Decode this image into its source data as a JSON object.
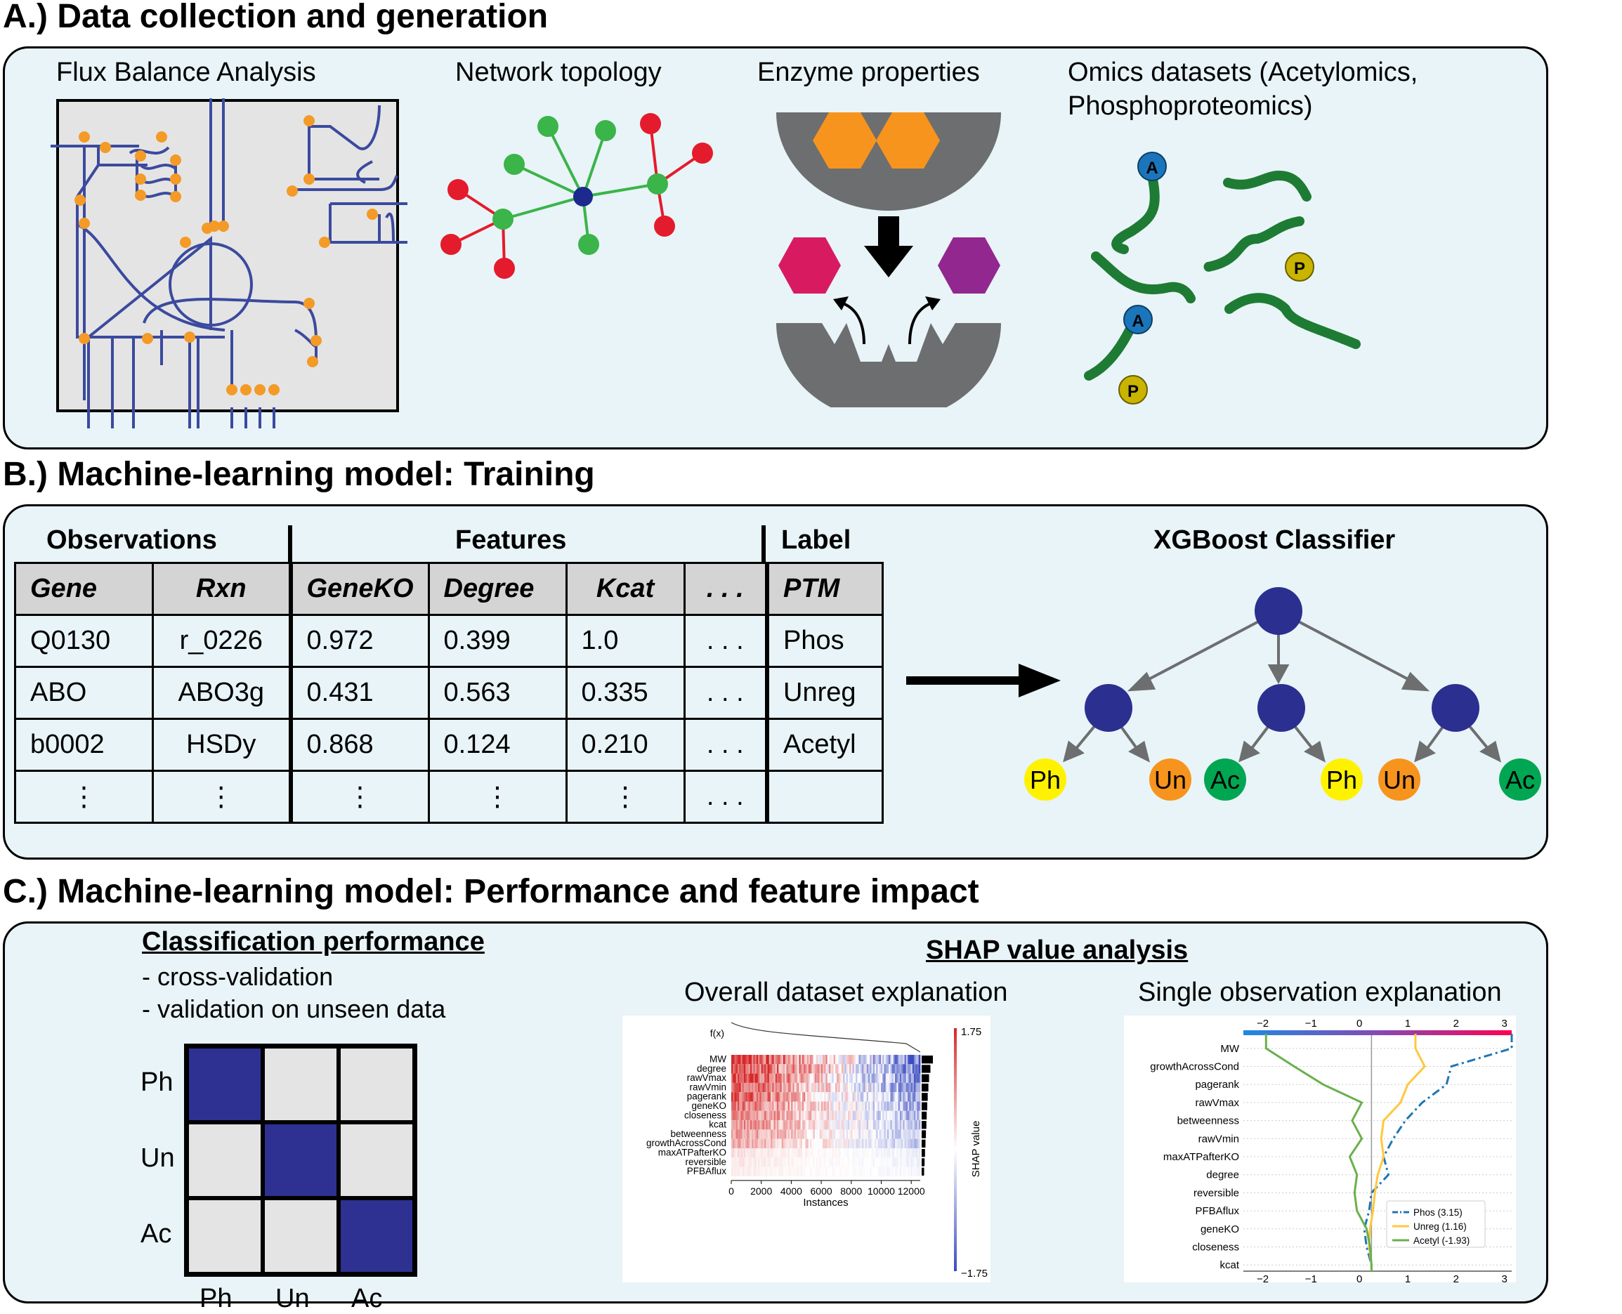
{
  "sections": {
    "a": {
      "heading": "A.) Data collection and generation"
    },
    "b": {
      "heading": "B.) Machine-learning model: Training"
    },
    "c": {
      "heading": "C.) Machine-learning model: Performance and feature impact"
    }
  },
  "panel_a": {
    "fba_title": "Flux Balance Analysis",
    "network_title": "Network topology",
    "enzyme_title": "Enzyme properties",
    "omics_title_line1": "Omics datasets (Acetylomics,",
    "omics_title_line2": "Phosphoproteomics)",
    "ptm_badges": {
      "acetyl": "A",
      "phospho": "P"
    },
    "colors": {
      "pathway": "#3b4a9e",
      "metabolite": "#f39a27",
      "hub": "#1b2a8c",
      "node_green": "#3bb44a",
      "node_red": "#e41b2c",
      "enzyme_gray": "#6d6e70",
      "substrate": "#f7941d",
      "product_pink": "#d81b60",
      "product_purple": "#92278f",
      "protein": "#1e7b33"
    }
  },
  "panel_b": {
    "group_headers": {
      "observations": "Observations",
      "features": "Features",
      "label": "Label"
    },
    "table": {
      "columns": [
        "Gene",
        "Rxn",
        "GeneKO",
        "Degree",
        "Kcat",
        ". . .",
        "PTM"
      ],
      "rows": [
        [
          "Q0130",
          "r_0226",
          "0.972",
          "0.399",
          "1.0",
          ". . .",
          "Phos"
        ],
        [
          "ABO",
          "ABO3g",
          "0.431",
          "0.563",
          "0.335",
          ". . .",
          "Unreg"
        ],
        [
          "b0002",
          "HSDy",
          "0.868",
          "0.124",
          "0.210",
          ". . .",
          "Acetyl"
        ],
        [
          "⋮",
          "⋮",
          "⋮",
          "⋮",
          "⋮",
          ". . .",
          ""
        ]
      ]
    },
    "classifier_title": "XGBoost Classifier",
    "leaves": [
      "Ph",
      "Un",
      "Ac",
      "Ph",
      "Un",
      "Ac"
    ],
    "colors": {
      "tree_node": "#2b2f8f",
      "Ph": "#fff200",
      "Un": "#f7941d",
      "Ac": "#00a651",
      "edge": "#6d6e70"
    }
  },
  "panel_c": {
    "perf_title": "Classification performance",
    "perf_items": [
      "- cross-validation",
      "- validation on unseen data"
    ],
    "confusion_matrix": {
      "row_labels": [
        "Ph",
        "Un",
        "Ac"
      ],
      "col_labels": [
        "Ph",
        "Un",
        "Ac"
      ],
      "highlight": [
        [
          1,
          0,
          0
        ],
        [
          0,
          1,
          0
        ],
        [
          0,
          0,
          1
        ]
      ],
      "colors": {
        "on": "#2e3192",
        "off": "#e4e4e4"
      }
    },
    "shap_title": "SHAP value analysis",
    "overall_title": "Overall dataset explanation",
    "single_title": "Single observation explanation"
  },
  "chart_data": [
    {
      "type": "heatmap",
      "fx_label": "f(x)",
      "features": [
        "MW",
        "degree",
        "rawVmax",
        "rawVmin",
        "pagerank",
        "geneKO",
        "closeness",
        "kcat",
        "betweenness",
        "growthAcrossCond",
        "maxATPafterKO",
        "reversible",
        "PFBAflux"
      ],
      "feature_importance_bars": [
        1.0,
        0.78,
        0.66,
        0.6,
        0.54,
        0.5,
        0.45,
        0.42,
        0.38,
        0.34,
        0.3,
        0.26,
        0.22
      ],
      "x_ticks": [
        "0",
        "2000",
        "4000",
        "6000",
        "8000",
        "10000",
        "12000"
      ],
      "xlim": [
        0,
        12600
      ],
      "xlabel": "Instances",
      "colorbar_label": "SHAP value",
      "colorbar_range": [
        "1.75",
        "−1.75"
      ],
      "colormap": [
        "#d62728",
        "#ffffff",
        "#3b4cc0"
      ]
    },
    {
      "type": "line",
      "features": [
        "MW",
        "growthAcrossCond",
        "pagerank",
        "rawVmax",
        "betweenness",
        "rawVmin",
        "maxATPafterKO",
        "degree",
        "reversible",
        "PFBAflux",
        "geneKO",
        "closeness",
        "kcat"
      ],
      "x_ticks": [
        "−2",
        "−1",
        "0",
        "1",
        "2",
        "3"
      ],
      "top_x_ticks": [
        "−2",
        "−1",
        "0",
        "1",
        "2",
        "3"
      ],
      "xlim": [
        -2.4,
        3.15
      ],
      "base_value": 0.25,
      "series": [
        {
          "name": "Phos (3.15)",
          "color": "#1f77b4",
          "dash": "dashdot",
          "values": [
            3.15,
            1.9,
            1.8,
            1.3,
            0.95,
            0.7,
            0.5,
            0.6,
            0.25,
            0.2,
            0.1,
            0.15,
            0.25
          ]
        },
        {
          "name": "Unreg (1.16)",
          "color": "#ffc83d",
          "dash": "solid",
          "values": [
            1.16,
            1.35,
            1.0,
            0.85,
            0.5,
            0.45,
            0.5,
            0.38,
            0.32,
            0.28,
            0.22,
            0.2,
            0.25
          ]
        },
        {
          "name": "Acetyl (-1.93)",
          "color": "#6ab04c",
          "dash": "solid",
          "values": [
            -1.93,
            -1.35,
            -0.75,
            0.05,
            -0.15,
            0.05,
            -0.2,
            -0.05,
            -0.1,
            -0.05,
            0.15,
            0.22,
            0.25
          ]
        }
      ],
      "legend_position": "bottom-right"
    }
  ]
}
